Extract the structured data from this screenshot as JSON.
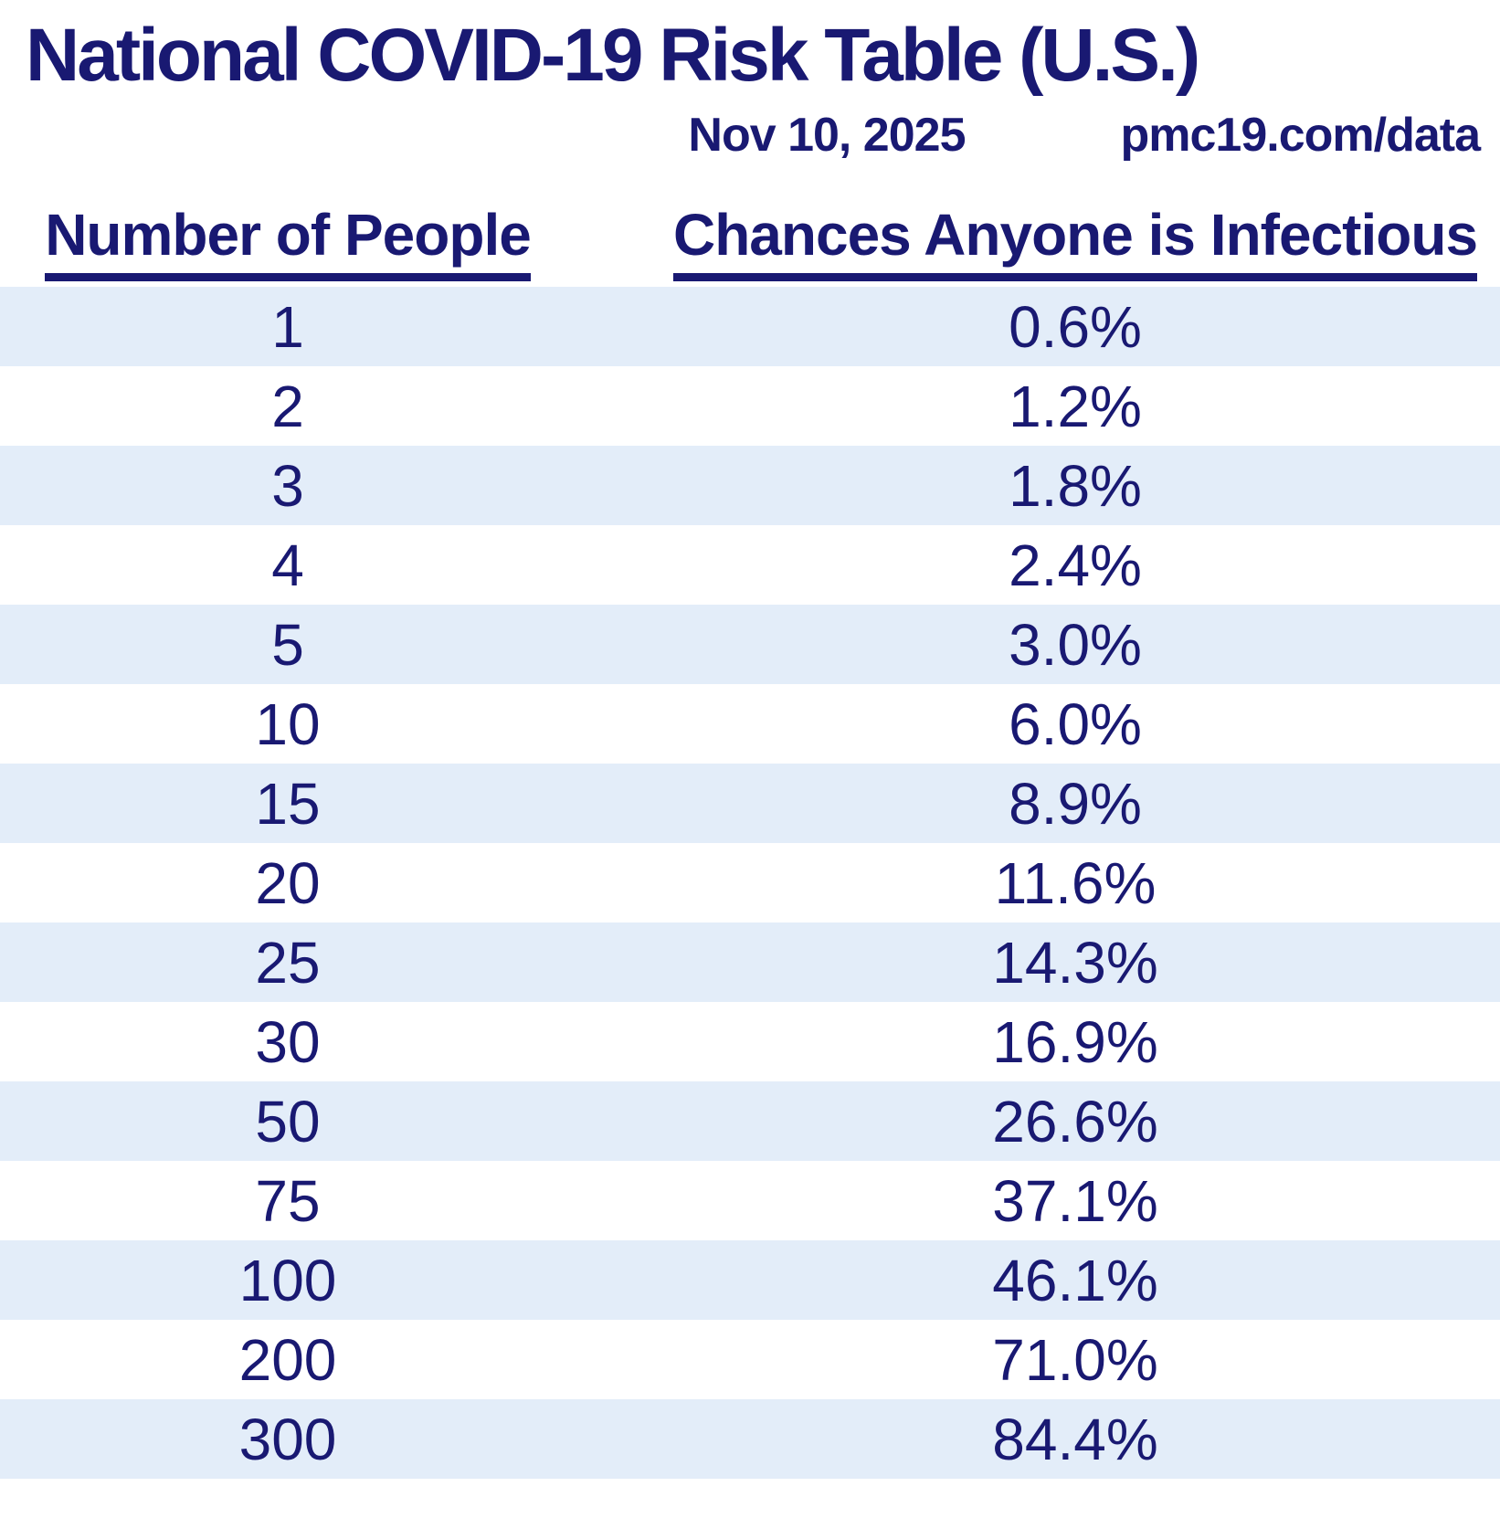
{
  "page": {
    "title": "National COVID-19 Risk Table (U.S.)",
    "date": "Nov 10, 2025",
    "source": "pmc19.com/data"
  },
  "colors": {
    "text_navy": "#191972",
    "stripe_blue": "#e3edf9",
    "background": "#ffffff"
  },
  "chart_data": {
    "type": "table",
    "title": "National COVID-19 Risk Table (U.S.)",
    "subtitle_date": "Nov 10, 2025",
    "subtitle_source": "pmc19.com/data",
    "columns": [
      "Number of People",
      "Chances Anyone is Infectious"
    ],
    "layout": {
      "row_striping": "alternating light blue / white starting with light blue",
      "header_underline": true,
      "values_alignment": "center"
    },
    "rows": [
      {
        "people": "1",
        "chance": "0.6%"
      },
      {
        "people": "2",
        "chance": "1.2%"
      },
      {
        "people": "3",
        "chance": "1.8%"
      },
      {
        "people": "4",
        "chance": "2.4%"
      },
      {
        "people": "5",
        "chance": "3.0%"
      },
      {
        "people": "10",
        "chance": "6.0%"
      },
      {
        "people": "15",
        "chance": "8.9%"
      },
      {
        "people": "20",
        "chance": "11.6%"
      },
      {
        "people": "25",
        "chance": "14.3%"
      },
      {
        "people": "30",
        "chance": "16.9%"
      },
      {
        "people": "50",
        "chance": "26.6%"
      },
      {
        "people": "75",
        "chance": "37.1%"
      },
      {
        "people": "100",
        "chance": "46.1%"
      },
      {
        "people": "200",
        "chance": "71.0%"
      },
      {
        "people": "300",
        "chance": "84.4%"
      }
    ]
  }
}
